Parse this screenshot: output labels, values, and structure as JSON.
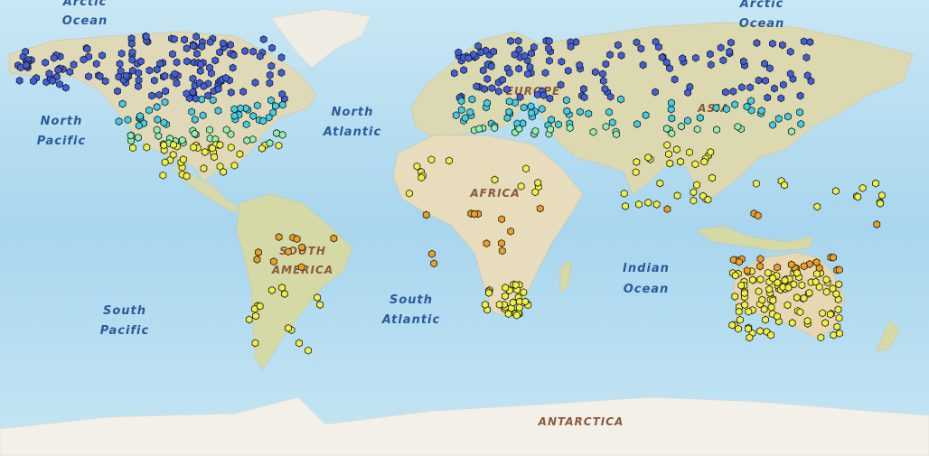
{
  "map": {
    "ocean_labels": [
      {
        "line1": "Arctic",
        "line2": "Ocean"
      },
      {
        "line1": "Arctic",
        "line2": "Ocean"
      },
      {
        "line1": "North",
        "line2": "Pacific"
      },
      {
        "line1": "North",
        "line2": "Atlantic"
      },
      {
        "line1": "South",
        "line2": "Pacific"
      },
      {
        "line1": "South",
        "line2": "Atlantic"
      },
      {
        "line1": "Indian",
        "line2": "Ocean"
      }
    ],
    "land_labels": {
      "africa": "AFRICA",
      "south_america_1": "SOUTH",
      "south_america_2": "AMERICA",
      "asia": "ASIA",
      "europe": "EUROPE",
      "antarctica": "ANTARCTICA"
    },
    "colors": {
      "ocean_deep": "#a9d6ee",
      "ocean_shallow": "#c8e8f5",
      "land": "#e6dcc0",
      "land_green": "#cfd9a8",
      "ice": "#f2efe8",
      "dot_cold": "#3f5fe0",
      "dot_cool": "#3fd0e8",
      "dot_mild": "#8ff0b0",
      "dot_warm": "#f0f040",
      "dot_hot": "#f0a020"
    }
  }
}
